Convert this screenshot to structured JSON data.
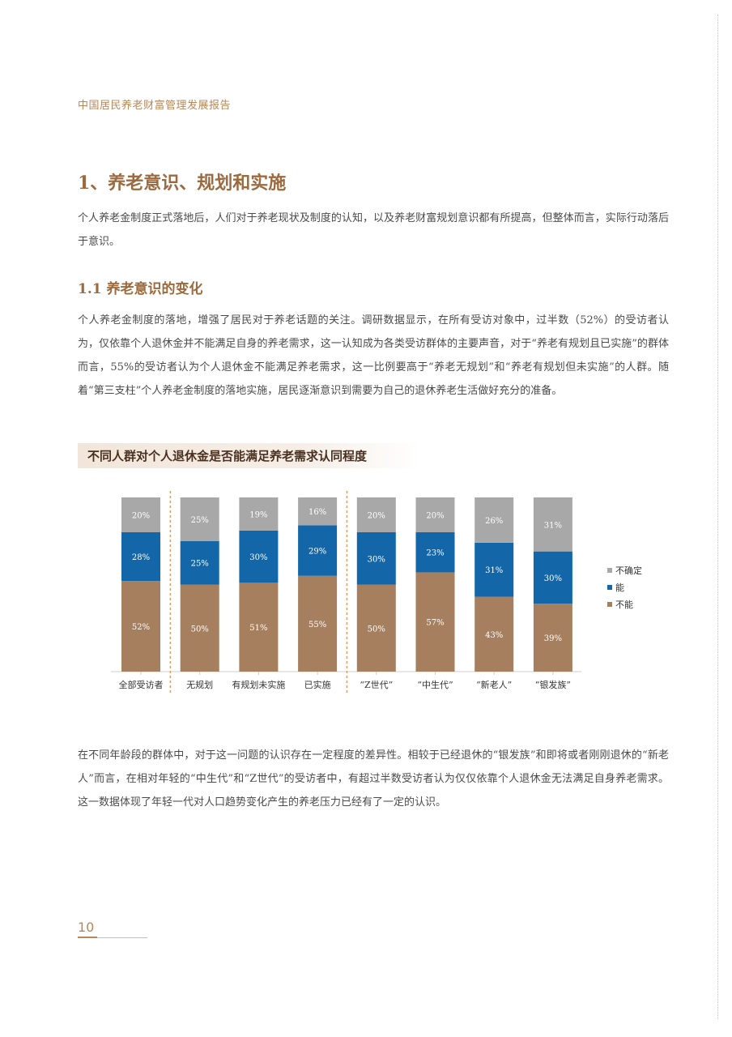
{
  "header": {
    "running_title": "中国居民养老财富管理发展报告"
  },
  "section": {
    "heading": "1、养老意识、规划和实施",
    "intro": "个人养老金制度正式落地后，人们对于养老现状及制度的认知，以及养老财富规划意识都有所提高，但整体而言，实际行动落后于意识。"
  },
  "subsection": {
    "heading": "1.1 养老意识的变化",
    "body": "个人养老金制度的落地，增强了居民对于养老话题的关注。调研数据显示，在所有受访对象中，过半数（52%）的受访者认为，仅依靠个人退休金并不能满足自身的养老需求，这一认知成为各类受访群体的主要声音，对于“养老有规划且已实施”的群体而言，55%的受访者认为个人退休金不能满足养老需求，这一比例要高于“养老无规划”和“养老有规划但未实施”的人群。随着“第三支柱”个人养老金制度的落地实施，居民逐渐意识到需要为自己的退休养老生活做好充分的准备。"
  },
  "chart_heading": "不同人群对个人退休金是否能满足养老需求认同程度",
  "chart_data": {
    "type": "bar",
    "stacked": true,
    "categories": [
      "全部受访者",
      "无规划",
      "有规划未实施",
      "已实施",
      "“Z世代”",
      "“中生代”",
      "“新老人”",
      "“银发族”"
    ],
    "series": [
      {
        "name": "不能",
        "color": "#a67f5f",
        "values": [
          52,
          50,
          51,
          55,
          50,
          57,
          43,
          39
        ]
      },
      {
        "name": "能",
        "color": "#1367a9",
        "values": [
          28,
          25,
          30,
          29,
          30,
          23,
          31,
          30
        ]
      },
      {
        "name": "不确定",
        "color": "#a8a8a8",
        "values": [
          20,
          25,
          19,
          16,
          20,
          20,
          26,
          31
        ]
      }
    ],
    "legend_order": [
      "不确定",
      "能",
      "不能"
    ],
    "legend": "right",
    "value_suffix": "%",
    "group_separators_after": [
      0,
      3
    ]
  },
  "closing": {
    "body": "在不同年龄段的群体中，对于这一问题的认识存在一定程度的差异性。相较于已经退休的“银发族”和即将或者刚刚退休的“新老人”而言，在相对年轻的“中生代”和“Z世代”的受访者中，有超过半数受访者认为仅仅依靠个人退休金无法满足自身养老需求。这一数据体现了年轻一代对人口趋势变化产生的养老压力已经有了一定的认识。"
  },
  "footer": {
    "page_number": "10"
  }
}
